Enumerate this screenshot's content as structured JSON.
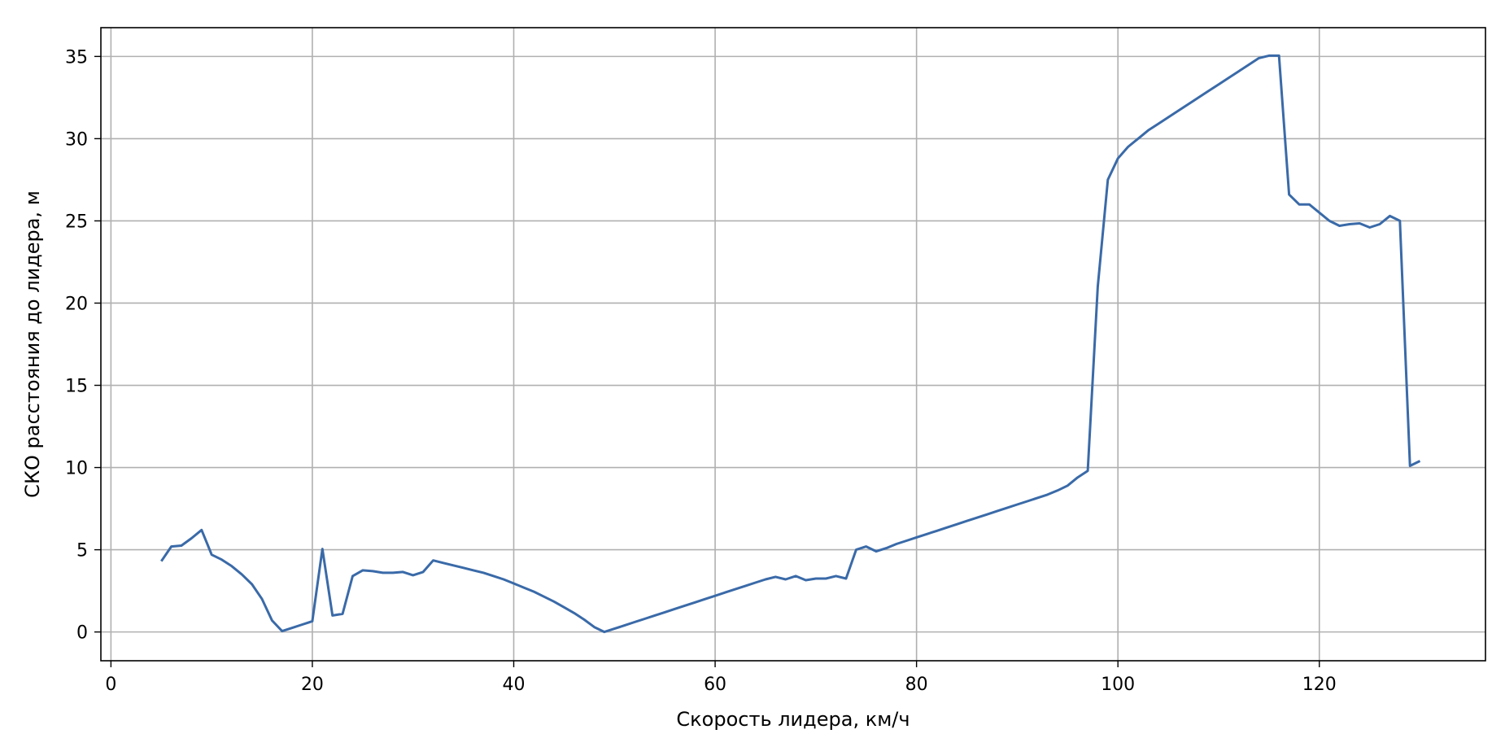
{
  "chart_data": {
    "type": "line",
    "title": "",
    "xlabel": "Скорость лидера, км/ч",
    "ylabel": "СКО расстояния до лидера, м",
    "xlim": [
      -1,
      136.5
    ],
    "ylim": [
      -1.75,
      36.75
    ],
    "xticks": [
      0,
      20,
      40,
      60,
      80,
      100,
      120
    ],
    "yticks": [
      0,
      5,
      10,
      15,
      20,
      25,
      30,
      35
    ],
    "grid": true,
    "legend": "none",
    "colors": {
      "line": "#3a6aa8",
      "grid": "#b0b0b0",
      "axes": "#000000"
    },
    "series": [
      {
        "x": [
          5,
          6,
          7,
          8,
          9,
          10,
          11,
          12,
          13,
          14,
          15,
          16,
          17,
          18,
          19,
          20,
          21,
          22,
          23,
          24,
          25,
          26,
          27,
          28,
          29,
          30,
          31,
          32,
          33,
          34,
          35,
          36,
          37,
          38,
          39,
          40,
          41,
          42,
          43,
          44,
          45,
          46,
          47,
          48,
          49,
          50,
          51,
          52,
          53,
          54,
          55,
          56,
          57,
          58,
          59,
          60,
          61,
          62,
          63,
          64,
          65,
          66,
          67,
          68,
          69,
          70,
          71,
          72,
          73,
          74,
          75,
          76,
          77,
          78,
          79,
          80,
          81,
          82,
          83,
          84,
          85,
          86,
          87,
          88,
          89,
          90,
          91,
          92,
          93,
          94,
          95,
          96,
          97,
          98,
          99,
          100,
          101,
          102,
          103,
          104,
          105,
          106,
          107,
          108,
          109,
          110,
          111,
          112,
          113,
          114,
          115,
          116,
          117,
          118,
          119,
          120,
          121,
          122,
          123,
          124,
          125,
          126,
          127,
          128,
          129,
          130
        ],
        "y": [
          4.3,
          5.2,
          5.25,
          5.7,
          6.2,
          4.7,
          4.4,
          4.0,
          3.5,
          2.9,
          2.0,
          0.7,
          0.05,
          0.25,
          0.45,
          0.65,
          5.05,
          1.0,
          1.1,
          3.4,
          3.75,
          3.7,
          3.6,
          3.6,
          3.65,
          3.45,
          3.65,
          4.35,
          4.2,
          4.05,
          3.9,
          3.75,
          3.6,
          3.4,
          3.2,
          2.95,
          2.7,
          2.45,
          2.15,
          1.85,
          1.5,
          1.15,
          0.75,
          0.3,
          0.0,
          0.2,
          0.4,
          0.6,
          0.8,
          1.0,
          1.2,
          1.4,
          1.6,
          1.8,
          2.0,
          2.2,
          2.4,
          2.6,
          2.8,
          3.0,
          3.2,
          3.35,
          3.2,
          3.4,
          3.15,
          3.25,
          3.25,
          3.4,
          3.25,
          5.0,
          5.2,
          4.9,
          5.1,
          5.35,
          5.55,
          5.75,
          5.95,
          6.15,
          6.35,
          6.55,
          6.75,
          6.95,
          7.15,
          7.35,
          7.55,
          7.75,
          7.95,
          8.15,
          8.35,
          8.6,
          8.9,
          9.4,
          9.8,
          21.0,
          27.5,
          28.8,
          29.5,
          30.0,
          30.5,
          30.9,
          31.3,
          31.7,
          32.1,
          32.5,
          32.9,
          33.3,
          33.7,
          34.1,
          34.5,
          34.9,
          35.05,
          35.05,
          26.6,
          26.0,
          26.0,
          25.5,
          25.0,
          24.7,
          24.8,
          24.85,
          24.6,
          24.8,
          25.3,
          25.0,
          10.1,
          10.4
        ]
      }
    ]
  }
}
